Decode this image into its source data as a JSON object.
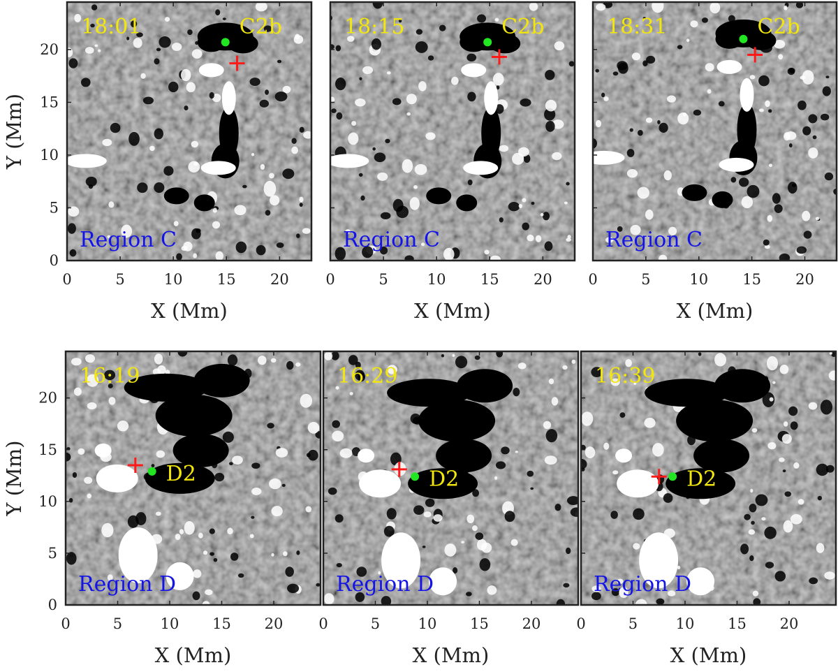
{
  "figure": {
    "colors": {
      "time_text": "#f2e60c",
      "region_text": "#1414e6",
      "feature_text": "#f2e60c",
      "cross": "#ff1a1a",
      "dot": "#22e622",
      "positive": "#ffffff",
      "negative": "#000000",
      "background": "#8a8a8a"
    },
    "rows": [
      {
        "region_label": "Region C",
        "feature_label": "C2b",
        "xlabel": "X (Mm)",
        "ylabel": "Y (Mm)",
        "x_ticks": [
          0,
          5,
          10,
          15,
          20
        ],
        "y_ticks": [
          0,
          5,
          10,
          15,
          20
        ],
        "xlim": [
          0,
          23
        ],
        "ylim": [
          0,
          24.5
        ],
        "panels": [
          {
            "time": "18:01",
            "cross": [
              16.0,
              18.7
            ],
            "dot": [
              14.9,
              20.7
            ]
          },
          {
            "time": "18:15",
            "cross": [
              15.9,
              19.3
            ],
            "dot": [
              14.8,
              20.7
            ]
          },
          {
            "time": "18:31",
            "cross": [
              15.3,
              19.5
            ],
            "dot": [
              14.2,
              21.0
            ]
          }
        ]
      },
      {
        "region_label": "Region D",
        "feature_label": "D2",
        "xlabel": "X (Mm)",
        "ylabel": "Y (Mm)",
        "x_ticks": [
          0,
          5,
          10,
          15,
          20
        ],
        "y_ticks": [
          0,
          5,
          10,
          15,
          20
        ],
        "xlim": [
          0,
          24.5
        ],
        "ylim": [
          0,
          24.5
        ],
        "panels": [
          {
            "time": "16:19",
            "cross": [
              6.7,
              13.5
            ],
            "dot": [
              8.3,
              12.9
            ]
          },
          {
            "time": "16:29",
            "cross": [
              7.3,
              13.1
            ],
            "dot": [
              8.8,
              12.4
            ]
          },
          {
            "time": "16:39",
            "cross": [
              7.5,
              12.4
            ],
            "dot": [
              8.8,
              12.4
            ]
          }
        ]
      }
    ]
  }
}
